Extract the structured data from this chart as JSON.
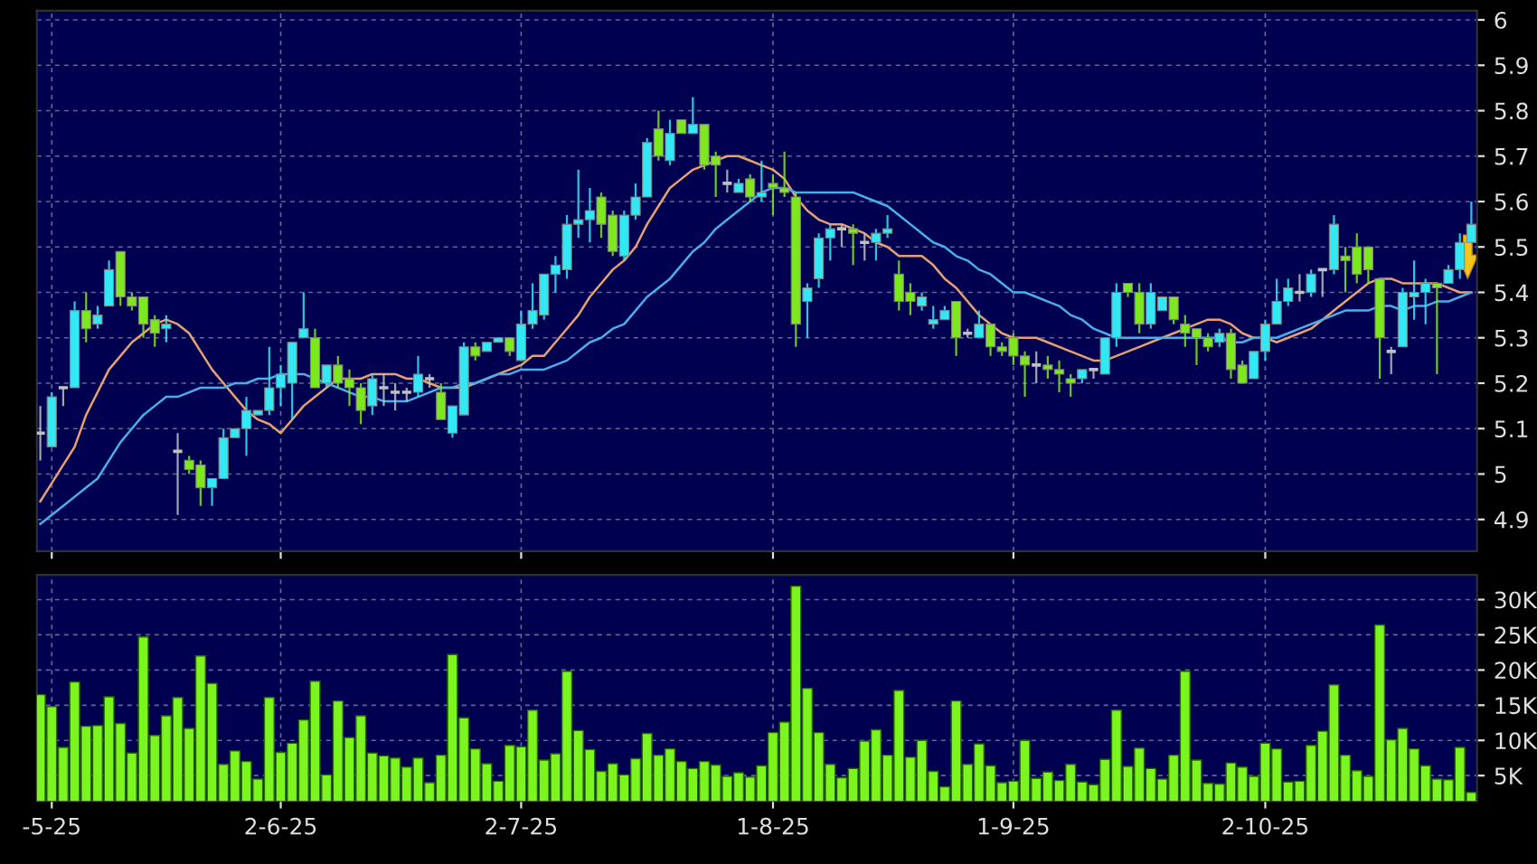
{
  "chart_data": [
    {
      "type": "candlestick",
      "categories": [
        null,
        null,
        null,
        null,
        null,
        null,
        null,
        null,
        null,
        null,
        null,
        null,
        null,
        null,
        null,
        null,
        null,
        null,
        null,
        null,
        null,
        null,
        null,
        null,
        null,
        null,
        null,
        null,
        null,
        null,
        null,
        null,
        null,
        null,
        null,
        null,
        null,
        null,
        null,
        null,
        null,
        null,
        null,
        null,
        null,
        null,
        null,
        null,
        null,
        null,
        null,
        null,
        null,
        null,
        null,
        null,
        null,
        null,
        null,
        null,
        null,
        null,
        null,
        null,
        null,
        null,
        null,
        null,
        null,
        null,
        null,
        null,
        null,
        null,
        null,
        null,
        null,
        null,
        null,
        null,
        null,
        null,
        null,
        null,
        null,
        null,
        null,
        null,
        null,
        null,
        null,
        null,
        null,
        null,
        null,
        null,
        null,
        null,
        null,
        null,
        null,
        null,
        null,
        null,
        null,
        null,
        null,
        null,
        null,
        null,
        null,
        null,
        null,
        null,
        null,
        null,
        null,
        null,
        null,
        null,
        null,
        null,
        null,
        null,
        null,
        null
      ],
      "ohlc": [
        [
          5.09,
          5.15,
          5.03,
          5.09
        ],
        [
          5.06,
          5.18,
          5.06,
          5.17
        ],
        [
          5.19,
          5.19,
          5.15,
          5.19
        ],
        [
          5.19,
          5.38,
          5.19,
          5.36
        ],
        [
          5.36,
          5.4,
          5.29,
          5.32
        ],
        [
          5.33,
          5.37,
          5.32,
          5.35
        ],
        [
          5.37,
          5.47,
          5.37,
          5.45
        ],
        [
          5.49,
          5.49,
          5.37,
          5.39
        ],
        [
          5.39,
          5.4,
          5.36,
          5.37
        ],
        [
          5.39,
          5.39,
          5.3,
          5.33
        ],
        [
          5.34,
          5.35,
          5.28,
          5.31
        ],
        [
          5.32,
          5.35,
          5.29,
          5.33
        ],
        [
          5.05,
          5.09,
          4.91,
          5.05
        ],
        [
          5.03,
          5.04,
          5.0,
          5.01
        ],
        [
          5.02,
          5.03,
          4.93,
          4.97
        ],
        [
          4.97,
          4.99,
          4.93,
          4.99
        ],
        [
          4.99,
          5.1,
          4.99,
          5.08
        ],
        [
          5.08,
          5.1,
          5.08,
          5.1
        ],
        [
          5.1,
          5.17,
          5.04,
          5.14
        ],
        [
          5.13,
          5.14,
          5.13,
          5.14
        ],
        [
          5.14,
          5.28,
          5.13,
          5.19
        ],
        [
          5.19,
          5.24,
          5.15,
          5.22
        ],
        [
          5.2,
          5.29,
          5.12,
          5.29
        ],
        [
          5.3,
          5.4,
          5.3,
          5.32
        ],
        [
          5.3,
          5.32,
          5.19,
          5.19
        ],
        [
          5.2,
          5.24,
          5.19,
          5.24
        ],
        [
          5.24,
          5.26,
          5.19,
          5.2
        ],
        [
          5.21,
          5.23,
          5.15,
          5.19
        ],
        [
          5.19,
          5.2,
          5.11,
          5.14
        ],
        [
          5.15,
          5.22,
          5.13,
          5.21
        ],
        [
          5.19,
          5.22,
          5.15,
          5.19
        ],
        [
          5.18,
          5.2,
          5.14,
          5.18
        ],
        [
          5.18,
          5.19,
          5.16,
          5.18
        ],
        [
          5.18,
          5.26,
          5.17,
          5.22
        ],
        [
          5.21,
          5.22,
          5.19,
          5.21
        ],
        [
          5.18,
          5.2,
          5.12,
          5.12
        ],
        [
          5.09,
          5.15,
          5.08,
          5.15
        ],
        [
          5.13,
          5.29,
          5.13,
          5.28
        ],
        [
          5.28,
          5.29,
          5.25,
          5.26
        ],
        [
          5.27,
          5.29,
          5.27,
          5.29
        ],
        [
          5.29,
          5.3,
          5.29,
          5.3
        ],
        [
          5.3,
          5.3,
          5.26,
          5.27
        ],
        [
          5.25,
          5.36,
          5.25,
          5.33
        ],
        [
          5.33,
          5.42,
          5.32,
          5.36
        ],
        [
          5.35,
          5.44,
          5.34,
          5.44
        ],
        [
          5.44,
          5.48,
          5.4,
          5.46
        ],
        [
          5.45,
          5.57,
          5.43,
          5.55
        ],
        [
          5.55,
          5.67,
          5.52,
          5.56
        ],
        [
          5.56,
          5.63,
          5.51,
          5.58
        ],
        [
          5.61,
          5.62,
          5.52,
          5.55
        ],
        [
          5.57,
          5.58,
          5.48,
          5.49
        ],
        [
          5.48,
          5.58,
          5.47,
          5.57
        ],
        [
          5.57,
          5.64,
          5.56,
          5.61
        ],
        [
          5.61,
          5.74,
          5.61,
          5.73
        ],
        [
          5.76,
          5.8,
          5.69,
          5.7
        ],
        [
          5.69,
          5.78,
          5.68,
          5.75
        ],
        [
          5.78,
          5.78,
          5.75,
          5.75
        ],
        [
          5.75,
          5.83,
          5.75,
          5.77
        ],
        [
          5.77,
          5.77,
          5.67,
          5.68
        ],
        [
          5.7,
          5.71,
          5.61,
          5.68
        ],
        [
          5.64,
          5.67,
          5.62,
          5.64
        ],
        [
          5.62,
          5.65,
          5.62,
          5.64
        ],
        [
          5.65,
          5.66,
          5.6,
          5.61
        ],
        [
          5.61,
          5.69,
          5.6,
          5.62
        ],
        [
          5.64,
          5.66,
          5.57,
          5.63
        ],
        [
          5.63,
          5.71,
          5.61,
          5.62
        ],
        [
          5.61,
          5.62,
          5.28,
          5.33
        ],
        [
          5.38,
          5.42,
          5.3,
          5.41
        ],
        [
          5.43,
          5.53,
          5.41,
          5.52
        ],
        [
          5.52,
          5.55,
          5.47,
          5.54
        ],
        [
          5.54,
          5.55,
          5.5,
          5.54
        ],
        [
          5.54,
          5.55,
          5.46,
          5.53
        ],
        [
          5.51,
          5.53,
          5.47,
          5.51
        ],
        [
          5.51,
          5.54,
          5.47,
          5.53
        ],
        [
          5.53,
          5.57,
          5.52,
          5.54
        ],
        [
          5.44,
          5.47,
          5.36,
          5.38
        ],
        [
          5.4,
          5.42,
          5.35,
          5.38
        ],
        [
          5.37,
          5.4,
          5.36,
          5.39
        ],
        [
          5.33,
          5.37,
          5.32,
          5.34
        ],
        [
          5.34,
          5.37,
          5.34,
          5.36
        ],
        [
          5.38,
          5.38,
          5.26,
          5.3
        ],
        [
          5.31,
          5.32,
          5.3,
          5.31
        ],
        [
          5.3,
          5.36,
          5.3,
          5.33
        ],
        [
          5.33,
          5.33,
          5.26,
          5.28
        ],
        [
          5.28,
          5.29,
          5.26,
          5.27
        ],
        [
          5.3,
          5.31,
          5.24,
          5.26
        ],
        [
          5.26,
          5.27,
          5.17,
          5.24
        ],
        [
          5.24,
          5.27,
          5.2,
          5.24
        ],
        [
          5.24,
          5.26,
          5.21,
          5.23
        ],
        [
          5.23,
          5.25,
          5.18,
          5.22
        ],
        [
          5.21,
          5.22,
          5.17,
          5.2
        ],
        [
          5.21,
          5.23,
          5.2,
          5.23
        ],
        [
          5.23,
          5.23,
          5.21,
          5.23
        ],
        [
          5.22,
          5.3,
          5.22,
          5.3
        ],
        [
          5.3,
          5.42,
          5.28,
          5.4
        ],
        [
          5.42,
          5.42,
          5.39,
          5.4
        ],
        [
          5.4,
          5.42,
          5.31,
          5.33
        ],
        [
          5.33,
          5.42,
          5.32,
          5.4
        ],
        [
          5.36,
          5.39,
          5.36,
          5.39
        ],
        [
          5.39,
          5.39,
          5.33,
          5.34
        ],
        [
          5.33,
          5.35,
          5.28,
          5.31
        ],
        [
          5.32,
          5.32,
          5.24,
          5.3
        ],
        [
          5.3,
          5.31,
          5.27,
          5.28
        ],
        [
          5.29,
          5.32,
          5.28,
          5.31
        ],
        [
          5.31,
          5.32,
          5.21,
          5.23
        ],
        [
          5.24,
          5.25,
          5.2,
          5.2
        ],
        [
          5.21,
          5.27,
          5.21,
          5.27
        ],
        [
          5.27,
          5.34,
          5.25,
          5.33
        ],
        [
          5.33,
          5.43,
          5.33,
          5.38
        ],
        [
          5.38,
          5.43,
          5.37,
          5.41
        ],
        [
          5.4,
          5.44,
          5.38,
          5.4
        ],
        [
          5.4,
          5.45,
          5.39,
          5.44
        ],
        [
          5.45,
          5.45,
          5.39,
          5.45
        ],
        [
          5.45,
          5.57,
          5.44,
          5.55
        ],
        [
          5.48,
          5.5,
          5.4,
          5.47
        ],
        [
          5.5,
          5.53,
          5.42,
          5.44
        ],
        [
          5.5,
          5.5,
          5.42,
          5.45
        ],
        [
          5.43,
          5.43,
          5.21,
          5.3
        ],
        [
          5.27,
          5.28,
          5.22,
          5.27
        ],
        [
          5.28,
          5.41,
          5.28,
          5.4
        ],
        [
          5.39,
          5.47,
          5.34,
          5.4
        ],
        [
          5.4,
          5.43,
          5.33,
          5.42
        ],
        [
          5.42,
          5.42,
          5.22,
          5.41
        ],
        [
          5.42,
          5.46,
          5.42,
          5.45
        ],
        [
          5.45,
          5.53,
          5.43,
          5.51
        ],
        [
          5.51,
          5.6,
          5.51,
          5.55
        ]
      ],
      "colors": [
        "#c0c0c0",
        "#33e8f5",
        "#c0c0c0",
        "#33e8f5",
        "#7ee81e",
        "#33e8f5",
        "#33e8f5",
        "#7ee81e",
        "#7ee81e",
        "#7ee81e",
        "#7ee81e",
        "#33e8f5",
        "#c0c0c0",
        "#7ee81e",
        "#7ee81e",
        "#33e8f5",
        "#33e8f5",
        "#33e8f5",
        "#33e8f5",
        "#33e8f5",
        "#33e8f5",
        "#33e8f5",
        "#33e8f5",
        "#33e8f5",
        "#7ee81e",
        "#33e8f5",
        "#7ee81e",
        "#7ee81e",
        "#7ee81e",
        "#33e8f5",
        "#c0c0c0",
        "#c0c0c0",
        "#c0c0c0",
        "#33e8f5",
        "#c0c0c0",
        "#7ee81e",
        "#33e8f5",
        "#33e8f5",
        "#7ee81e",
        "#33e8f5",
        "#33e8f5",
        "#7ee81e",
        "#33e8f5",
        "#33e8f5",
        "#33e8f5",
        "#33e8f5",
        "#33e8f5",
        "#33e8f5",
        "#33e8f5",
        "#7ee81e",
        "#7ee81e",
        "#33e8f5",
        "#33e8f5",
        "#33e8f5",
        "#7ee81e",
        "#33e8f5",
        "#7ee81e",
        "#33e8f5",
        "#7ee81e",
        "#7ee81e",
        "#c0c0c0",
        "#33e8f5",
        "#7ee81e",
        "#33e8f5",
        "#7ee81e",
        "#7ee81e",
        "#7ee81e",
        "#33e8f5",
        "#33e8f5",
        "#33e8f5",
        "#c0c0c0",
        "#7ee81e",
        "#c0c0c0",
        "#33e8f5",
        "#33e8f5",
        "#7ee81e",
        "#7ee81e",
        "#33e8f5",
        "#33e8f5",
        "#33e8f5",
        "#7ee81e",
        "#c0c0c0",
        "#33e8f5",
        "#7ee81e",
        "#7ee81e",
        "#7ee81e",
        "#7ee81e",
        "#c0c0c0",
        "#7ee81e",
        "#7ee81e",
        "#7ee81e",
        "#33e8f5",
        "#c0c0c0",
        "#33e8f5",
        "#33e8f5",
        "#7ee81e",
        "#7ee81e",
        "#33e8f5",
        "#33e8f5",
        "#7ee81e",
        "#7ee81e",
        "#7ee81e",
        "#7ee81e",
        "#33e8f5",
        "#7ee81e",
        "#7ee81e",
        "#33e8f5",
        "#33e8f5",
        "#33e8f5",
        "#33e8f5",
        "#c0c0c0",
        "#33e8f5",
        "#c0c0c0",
        "#33e8f5",
        "#7ee81e",
        "#7ee81e",
        "#7ee81e",
        "#7ee81e",
        "#c0c0c0",
        "#33e8f5",
        "#33e8f5",
        "#33e8f5",
        "#7ee81e",
        "#33e8f5",
        "#33e8f5",
        "#33e8f5"
      ],
      "series": [
        {
          "type": "line",
          "color": "#e8a070",
          "values": [
            4.94,
            4.98,
            5.02,
            5.06,
            5.13,
            5.18,
            5.23,
            5.26,
            5.29,
            5.31,
            5.33,
            5.34,
            5.33,
            5.31,
            5.27,
            5.23,
            5.2,
            5.17,
            5.14,
            5.12,
            5.11,
            5.09,
            5.12,
            5.15,
            5.17,
            5.19,
            5.21,
            5.21,
            5.21,
            5.22,
            5.22,
            5.22,
            5.21,
            5.21,
            5.2,
            5.19,
            5.19,
            5.19,
            5.2,
            5.21,
            5.22,
            5.23,
            5.24,
            5.26,
            5.26,
            5.29,
            5.32,
            5.35,
            5.39,
            5.42,
            5.45,
            5.47,
            5.5,
            5.55,
            5.59,
            5.63,
            5.65,
            5.67,
            5.68,
            5.69,
            5.7,
            5.7,
            5.69,
            5.68,
            5.67,
            5.65,
            5.61,
            5.58,
            5.56,
            5.55,
            5.55,
            5.54,
            5.53,
            5.51,
            5.5,
            5.48,
            5.48,
            5.48,
            5.46,
            5.43,
            5.41,
            5.38,
            5.35,
            5.33,
            5.31,
            5.3,
            5.3,
            5.3,
            5.29,
            5.28,
            5.27,
            5.26,
            5.25,
            5.25,
            5.26,
            5.27,
            5.28,
            5.29,
            5.3,
            5.31,
            5.32,
            5.33,
            5.34,
            5.34,
            5.33,
            5.31,
            5.3,
            5.3,
            5.29,
            5.3,
            5.31,
            5.32,
            5.34,
            5.36,
            5.38,
            5.4,
            5.42,
            5.43,
            5.43,
            5.42,
            5.42,
            5.42,
            5.42,
            5.41,
            5.4,
            5.4
          ]
        },
        {
          "type": "line",
          "color": "#4aaeea",
          "values": [
            4.89,
            4.91,
            4.93,
            4.95,
            4.97,
            4.99,
            5.03,
            5.07,
            5.1,
            5.13,
            5.15,
            5.17,
            5.17,
            5.18,
            5.19,
            5.19,
            5.19,
            5.2,
            5.2,
            5.21,
            5.21,
            5.22,
            5.22,
            5.22,
            5.21,
            5.2,
            5.19,
            5.18,
            5.17,
            5.17,
            5.16,
            5.16,
            5.16,
            5.17,
            5.18,
            5.19,
            5.19,
            5.2,
            5.2,
            5.21,
            5.22,
            5.22,
            5.23,
            5.23,
            5.23,
            5.24,
            5.25,
            5.27,
            5.29,
            5.3,
            5.32,
            5.33,
            5.36,
            5.39,
            5.41,
            5.43,
            5.46,
            5.49,
            5.51,
            5.54,
            5.56,
            5.58,
            5.6,
            5.62,
            5.63,
            5.63,
            5.62,
            5.62,
            5.62,
            5.62,
            5.62,
            5.62,
            5.61,
            5.6,
            5.59,
            5.57,
            5.55,
            5.53,
            5.51,
            5.5,
            5.48,
            5.47,
            5.45,
            5.44,
            5.42,
            5.4,
            5.4,
            5.39,
            5.38,
            5.37,
            5.35,
            5.34,
            5.32,
            5.31,
            5.3,
            5.3,
            5.3,
            5.3,
            5.3,
            5.3,
            5.3,
            5.3,
            5.3,
            5.3,
            5.29,
            5.29,
            5.3,
            5.3,
            5.3,
            5.31,
            5.32,
            5.33,
            5.34,
            5.35,
            5.36,
            5.36,
            5.36,
            5.37,
            5.37,
            5.36,
            5.37,
            5.37,
            5.38,
            5.38,
            5.39,
            5.4
          ]
        }
      ],
      "ylim": [
        4.83,
        6.02
      ],
      "yticks": [
        4.9,
        5,
        5.1,
        5.2,
        5.3,
        5.4,
        5.5,
        5.6,
        5.7,
        5.8,
        5.9,
        6
      ],
      "grid": true,
      "tick_labels": "y"
    },
    {
      "type": "bar",
      "categories": [
        null,
        "-5-25",
        null,
        null,
        null,
        null,
        null,
        null,
        null,
        null,
        null,
        null,
        null,
        null,
        null,
        null,
        null,
        null,
        null,
        null,
        null,
        "2-6-25",
        null,
        null,
        null,
        null,
        null,
        null,
        null,
        null,
        null,
        null,
        null,
        null,
        null,
        null,
        null,
        null,
        null,
        null,
        null,
        null,
        "2-7-25",
        null,
        null,
        null,
        null,
        null,
        null,
        null,
        null,
        null,
        null,
        null,
        null,
        null,
        null,
        null,
        null,
        null,
        null,
        null,
        null,
        null,
        "1-8-25",
        null,
        null,
        null,
        null,
        null,
        null,
        null,
        null,
        null,
        null,
        null,
        null,
        null,
        null,
        null,
        null,
        null,
        null,
        null,
        null,
        "1-9-25",
        null,
        null,
        null,
        null,
        null,
        null,
        null,
        null,
        null,
        null,
        null,
        null,
        null,
        null,
        null,
        null,
        null,
        null,
        null,
        null,
        null,
        "2-10-25",
        null,
        null,
        null,
        null,
        null,
        null,
        null,
        null,
        null,
        null,
        null,
        null,
        null,
        null,
        null,
        null,
        null,
        null
      ],
      "values": [
        16.5,
        14.8,
        9.0,
        18.3,
        12.0,
        12.1,
        16.2,
        12.4,
        8.2,
        24.7,
        10.7,
        13.5,
        16.1,
        11.7,
        22.0,
        18.1,
        6.6,
        8.5,
        7.0,
        4.5,
        16.1,
        8.3,
        9.6,
        12.9,
        18.4,
        5.1,
        15.6,
        10.4,
        13.5,
        8.2,
        7.8,
        7.5,
        6.2,
        7.5,
        4.0,
        7.9,
        22.2,
        13.2,
        8.8,
        6.7,
        4.2,
        9.3,
        9.1,
        14.3,
        7.2,
        8.1,
        19.8,
        11.4,
        8.7,
        5.6,
        6.7,
        5.1,
        7.4,
        11.0,
        7.9,
        8.8,
        7.0,
        6.0,
        7.0,
        6.5,
        4.9,
        5.4,
        4.8,
        6.4,
        11.1,
        12.6,
        31.9,
        17.4,
        11.1,
        6.6,
        4.7,
        6.0,
        9.9,
        11.5,
        7.9,
        17.1,
        7.6,
        10.0,
        5.6,
        3.4,
        15.6,
        6.6,
        9.5,
        6.4,
        4.0,
        4.2,
        10.0,
        4.6,
        5.5,
        4.3,
        6.6,
        4.1,
        3.7,
        7.3,
        14.3,
        6.3,
        8.9,
        6.0,
        4.5,
        7.9,
        19.8,
        7.2,
        3.9,
        3.8,
        6.8,
        6.2,
        4.9,
        9.6,
        8.8,
        4.1,
        4.2,
        9.3,
        11.3,
        17.9,
        7.9,
        5.7,
        4.9,
        26.4,
        10.1,
        11.7,
        8.8,
        6.4,
        4.5,
        4.4,
        9.0,
        2.6
      ],
      "color": "#7cf51e",
      "ylim": [
        1.4,
        33.5
      ],
      "yticks": [
        {
          "value": 5,
          "label": "5K"
        },
        {
          "value": 10,
          "label": "10K"
        },
        {
          "value": 15,
          "label": "15K"
        },
        {
          "value": 20,
          "label": "20K"
        },
        {
          "value": 25,
          "label": "25K"
        },
        {
          "value": 30,
          "label": "30K"
        }
      ],
      "grid": true
    }
  ]
}
